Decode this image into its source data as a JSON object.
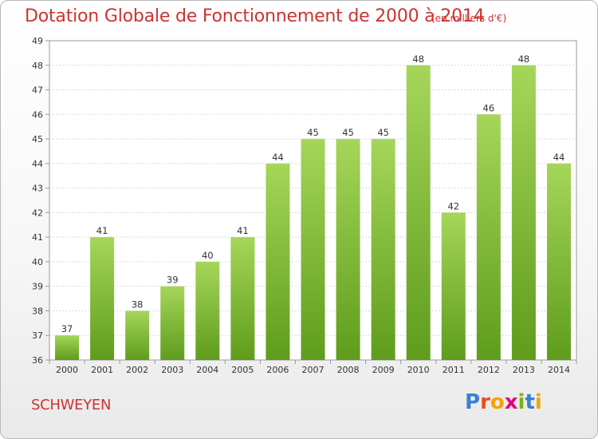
{
  "title": "Dotation Globale de Fonctionnement de 2000 à 2014",
  "subtitle": "(en milliers d'€)",
  "commune": "SCHWEYEN",
  "logo": {
    "letters": [
      "P",
      "r",
      "o",
      "x",
      "i",
      "t",
      "i"
    ],
    "colors": [
      "#3a7fd5",
      "#e94e1b",
      "#f5a300",
      "#e3007e",
      "#7ab317",
      "#3a7fd5",
      "#f5a300"
    ]
  },
  "chart_data": {
    "type": "bar",
    "categories": [
      "2000",
      "2001",
      "2002",
      "2003",
      "2004",
      "2005",
      "2006",
      "2007",
      "2008",
      "2009",
      "2010",
      "2011",
      "2012",
      "2013",
      "2014"
    ],
    "values": [
      37,
      41,
      38,
      39,
      40,
      41,
      44,
      45,
      45,
      45,
      48,
      42,
      46,
      48,
      44
    ],
    "title": "Dotation Globale de Fonctionnement de 2000 à 2014",
    "subtitle": "(en milliers d'€)",
    "ylim": [
      36,
      49
    ],
    "yticks": [
      "36",
      "37",
      "38",
      "39",
      "40",
      "41",
      "42",
      "43",
      "44",
      "45",
      "46",
      "47",
      "48",
      "49"
    ],
    "grid": true,
    "bar_color_top": "#a5d65a",
    "bar_color_bottom": "#5f9c1c"
  }
}
